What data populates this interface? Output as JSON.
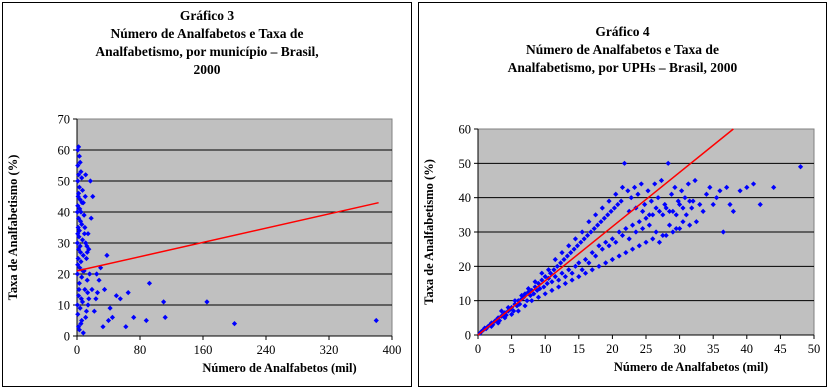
{
  "chart_data": [
    {
      "type": "scatter",
      "title": "Gráfico 3",
      "subtitle_lines": [
        "Número de Analfabetos e Taxa de",
        "Analfabetismo, por município – Brasil,",
        "2000"
      ],
      "xlabel": "Número de Analfabetos (mil)",
      "ylabel": "Taxa de Analfabetismo (%)",
      "xlim": [
        0,
        400
      ],
      "ylim": [
        0,
        70
      ],
      "xticks": [
        "0",
        "80",
        "160",
        "240",
        "320",
        "400"
      ],
      "yticks": [
        "0",
        "10",
        "20",
        "30",
        "40",
        "50",
        "60",
        "70"
      ],
      "grid": "horizontal",
      "plot_background": "#c0c0c0",
      "point_color": "#0000ff",
      "trend_color": "#ff0000",
      "trendline": {
        "x": [
          0,
          383
        ],
        "y": [
          21,
          43
        ]
      },
      "points": [
        [
          1,
          60
        ],
        [
          2,
          61
        ],
        [
          3,
          58
        ],
        [
          1,
          55
        ],
        [
          4,
          56
        ],
        [
          2,
          52
        ],
        [
          5,
          53
        ],
        [
          1,
          50
        ],
        [
          6,
          51
        ],
        [
          3,
          48
        ],
        [
          2,
          46
        ],
        [
          7,
          47
        ],
        [
          4,
          44
        ],
        [
          1,
          42
        ],
        [
          8,
          43
        ],
        [
          5,
          40
        ],
        [
          2,
          38
        ],
        [
          9,
          39
        ],
        [
          6,
          36
        ],
        [
          3,
          34
        ],
        [
          10,
          35
        ],
        [
          1,
          33
        ],
        [
          7,
          31
        ],
        [
          4,
          29
        ],
        [
          11,
          30
        ],
        [
          2,
          28
        ],
        [
          8,
          26
        ],
        [
          5,
          24
        ],
        [
          12,
          25
        ],
        [
          1,
          23
        ],
        [
          9,
          21
        ],
        [
          6,
          19
        ],
        [
          3,
          17
        ],
        [
          13,
          18
        ],
        [
          10,
          15
        ],
        [
          2,
          13
        ],
        [
          7,
          11
        ],
        [
          4,
          9
        ],
        [
          14,
          10
        ],
        [
          1,
          7
        ],
        [
          11,
          6
        ],
        [
          5,
          4
        ],
        [
          3,
          2
        ],
        [
          8,
          1
        ],
        [
          2,
          3
        ],
        [
          6,
          5
        ],
        [
          12,
          8
        ],
        [
          15,
          12
        ],
        [
          16,
          20
        ],
        [
          13,
          27
        ],
        [
          14,
          33
        ],
        [
          18,
          38
        ],
        [
          20,
          45
        ],
        [
          17,
          50
        ],
        [
          11,
          52
        ],
        [
          15,
          28
        ],
        [
          19,
          15
        ],
        [
          22,
          8
        ],
        [
          24,
          12
        ],
        [
          25,
          20
        ],
        [
          28,
          18
        ],
        [
          30,
          22
        ],
        [
          26,
          14
        ],
        [
          33,
          3
        ],
        [
          35,
          15
        ],
        [
          40,
          5
        ],
        [
          42,
          9
        ],
        [
          38,
          26
        ],
        [
          45,
          6
        ],
        [
          50,
          13
        ],
        [
          55,
          12
        ],
        [
          62,
          3
        ],
        [
          65,
          14
        ],
        [
          72,
          6
        ],
        [
          88,
          5
        ],
        [
          92,
          17
        ],
        [
          110,
          11
        ],
        [
          112,
          6
        ],
        [
          165,
          11
        ],
        [
          200,
          4
        ],
        [
          380,
          5
        ],
        [
          0.5,
          20
        ],
        [
          0.5,
          30
        ],
        [
          0.5,
          40
        ],
        [
          0.5,
          10
        ],
        [
          1.5,
          25
        ],
        [
          1.5,
          35
        ],
        [
          1.5,
          45
        ],
        [
          2.5,
          15
        ],
        [
          2.5,
          32
        ],
        [
          3.5,
          22
        ],
        [
          3.5,
          41
        ],
        [
          4.5,
          27
        ],
        [
          4.5,
          37
        ],
        [
          5.5,
          12
        ],
        [
          6.5,
          43
        ],
        [
          7.5,
          21
        ],
        [
          9.5,
          33
        ],
        [
          10.5,
          45
        ],
        [
          12.5,
          29
        ],
        [
          13.5,
          14
        ]
      ]
    },
    {
      "type": "scatter",
      "title": "Gráfico 4",
      "subtitle_lines": [
        "Número de Analfabetos e Taxa de",
        "Analfabetismo, por UPHs – Brasil, 2000"
      ],
      "xlabel": "Número de Analfabetos (mil)",
      "ylabel": "Taxa de Analfabetismo (%)",
      "xlim": [
        0,
        50
      ],
      "ylim": [
        0,
        60
      ],
      "xticks": [
        "0",
        "5",
        "10",
        "15",
        "20",
        "25",
        "30",
        "35",
        "40",
        "45",
        "50"
      ],
      "yticks": [
        "0",
        "10",
        "20",
        "30",
        "40",
        "50",
        "60"
      ],
      "grid": "horizontal",
      "plot_background": "#c0c0c0",
      "point_color": "#0000ff",
      "trend_color": "#ff0000",
      "trendline": {
        "x": [
          0,
          38
        ],
        "y": [
          0,
          60
        ]
      },
      "points": [
        [
          0.3,
          0.5
        ],
        [
          0.5,
          1
        ],
        [
          0.8,
          1.5
        ],
        [
          1,
          2
        ],
        [
          1.2,
          1.8
        ],
        [
          1.5,
          2.5
        ],
        [
          1.8,
          3
        ],
        [
          2,
          3.5
        ],
        [
          2.2,
          3
        ],
        [
          2.5,
          4
        ],
        [
          2.8,
          4.5
        ],
        [
          3,
          5
        ],
        [
          3.2,
          4.2
        ],
        [
          3.5,
          5.5
        ],
        [
          3.8,
          6
        ],
        [
          4,
          6.5
        ],
        [
          4.2,
          5.8
        ],
        [
          4.5,
          7
        ],
        [
          4.8,
          7.5
        ],
        [
          5,
          8
        ],
        [
          5.3,
          7
        ],
        [
          5.5,
          9
        ],
        [
          5.8,
          8.5
        ],
        [
          6,
          10
        ],
        [
          6.2,
          9
        ],
        [
          6.5,
          10.5
        ],
        [
          6.8,
          11
        ],
        [
          7,
          12
        ],
        [
          7.3,
          10
        ],
        [
          7.5,
          12.5
        ],
        [
          7.8,
          11.5
        ],
        [
          8,
          13
        ],
        [
          8.3,
          12
        ],
        [
          8.5,
          14
        ],
        [
          8.8,
          13
        ],
        [
          9,
          15
        ],
        [
          9.2,
          13.5
        ],
        [
          9.5,
          16
        ],
        [
          9.8,
          14
        ],
        [
          10,
          17
        ],
        [
          10.3,
          15
        ],
        [
          10.5,
          16.5
        ],
        [
          10.8,
          18
        ],
        [
          11,
          15.5
        ],
        [
          11.3,
          19
        ],
        [
          11.5,
          17
        ],
        [
          11.8,
          20
        ],
        [
          12,
          16
        ],
        [
          12.3,
          21
        ],
        [
          12.5,
          18
        ],
        [
          12.8,
          22
        ],
        [
          13,
          17
        ],
        [
          13.3,
          23
        ],
        [
          13.5,
          19
        ],
        [
          13.8,
          24
        ],
        [
          14,
          18
        ],
        [
          14.3,
          25
        ],
        [
          14.5,
          20
        ],
        [
          14.8,
          26
        ],
        [
          15,
          21
        ],
        [
          15.3,
          27
        ],
        [
          15.5,
          19
        ],
        [
          15.8,
          28
        ],
        [
          16,
          22
        ],
        [
          16.3,
          29
        ],
        [
          16.5,
          21
        ],
        [
          16.8,
          30
        ],
        [
          17,
          24
        ],
        [
          17.3,
          31
        ],
        [
          17.5,
          23
        ],
        [
          17.8,
          32
        ],
        [
          18,
          26
        ],
        [
          18.3,
          33
        ],
        [
          18.5,
          25
        ],
        [
          18.8,
          34
        ],
        [
          19,
          27
        ],
        [
          19.3,
          35
        ],
        [
          19.5,
          26
        ],
        [
          19.8,
          36
        ],
        [
          20,
          28
        ],
        [
          20.3,
          37
        ],
        [
          20.5,
          27
        ],
        [
          20.8,
          38
        ],
        [
          21,
          30
        ],
        [
          21.3,
          39
        ],
        [
          21.5,
          29
        ],
        [
          21.8,
          50
        ],
        [
          22,
          31
        ],
        [
          22.3,
          42
        ],
        [
          22.5,
          28
        ],
        [
          22.8,
          40
        ],
        [
          23,
          32
        ],
        [
          23.3,
          43
        ],
        [
          23.5,
          30
        ],
        [
          23.8,
          41
        ],
        [
          24,
          33
        ],
        [
          24.3,
          44
        ],
        [
          24.5,
          31
        ],
        [
          24.8,
          38
        ],
        [
          25,
          34
        ],
        [
          25.3,
          42
        ],
        [
          25.5,
          32
        ],
        [
          25.8,
          39
        ],
        [
          26,
          35
        ],
        [
          26.3,
          44
        ],
        [
          26.5,
          30
        ],
        [
          26.8,
          40
        ],
        [
          27,
          36
        ],
        [
          27.3,
          45
        ],
        [
          27.5,
          29
        ],
        [
          27.8,
          38
        ],
        [
          28,
          37
        ],
        [
          28.3,
          50
        ],
        [
          28.5,
          32
        ],
        [
          28.8,
          41
        ],
        [
          29,
          36
        ],
        [
          29.3,
          43
        ],
        [
          29.5,
          31
        ],
        [
          29.8,
          39
        ],
        [
          30,
          38
        ],
        [
          30.3,
          42
        ],
        [
          30.5,
          33
        ],
        [
          30.8,
          40
        ],
        [
          31,
          35
        ],
        [
          31.3,
          44
        ],
        [
          31.5,
          32
        ],
        [
          31.8,
          37
        ],
        [
          32,
          39
        ],
        [
          32.3,
          45
        ],
        [
          32.5,
          33
        ],
        [
          33,
          38
        ],
        [
          33.5,
          36
        ],
        [
          34,
          41
        ],
        [
          34.5,
          43
        ],
        [
          35,
          38
        ],
        [
          35.5,
          40
        ],
        [
          36,
          42
        ],
        [
          36.5,
          30
        ],
        [
          37,
          43
        ],
        [
          37.5,
          38
        ],
        [
          38,
          36
        ],
        [
          39,
          42
        ],
        [
          40,
          43
        ],
        [
          41,
          44
        ],
        [
          42,
          38
        ],
        [
          44,
          43
        ],
        [
          48,
          49
        ],
        [
          2,
          2.5
        ],
        [
          3,
          3.5
        ],
        [
          4,
          5
        ],
        [
          5,
          6
        ],
        [
          6,
          7
        ],
        [
          7,
          8.5
        ],
        [
          8,
          10
        ],
        [
          9,
          11
        ],
        [
          10,
          12
        ],
        [
          11,
          13
        ],
        [
          12,
          14
        ],
        [
          13,
          15
        ],
        [
          14,
          16
        ],
        [
          15,
          17
        ],
        [
          16,
          18
        ],
        [
          17,
          19
        ],
        [
          18,
          20
        ],
        [
          19,
          21
        ],
        [
          20,
          22
        ],
        [
          21,
          23
        ],
        [
          22,
          24
        ],
        [
          23,
          25
        ],
        [
          24,
          26
        ],
        [
          25,
          27
        ],
        [
          26,
          28
        ],
        [
          27,
          27
        ],
        [
          28,
          29
        ],
        [
          29,
          30
        ],
        [
          30,
          31
        ],
        [
          3.5,
          7
        ],
        [
          4.5,
          8
        ],
        [
          5.5,
          10
        ],
        [
          6.5,
          11.5
        ],
        [
          7.5,
          13.5
        ],
        [
          8.5,
          15.5
        ],
        [
          9.5,
          18
        ],
        [
          10.5,
          19
        ],
        [
          11.5,
          22
        ],
        [
          12.5,
          24
        ],
        [
          13.5,
          26
        ],
        [
          14.5,
          28
        ],
        [
          15.5,
          30
        ],
        [
          16.5,
          33
        ],
        [
          17.5,
          35
        ],
        [
          18.5,
          37
        ],
        [
          19.5,
          39
        ],
        [
          20.5,
          41
        ],
        [
          21.5,
          43
        ],
        [
          22.5,
          36
        ],
        [
          23.5,
          37
        ],
        [
          24.5,
          36
        ],
        [
          25.5,
          35
        ],
        [
          26.5,
          37
        ],
        [
          27.5,
          35
        ],
        [
          28.5,
          36
        ],
        [
          29.5,
          35
        ],
        [
          30.5,
          37
        ],
        [
          31.5,
          39
        ]
      ]
    }
  ]
}
